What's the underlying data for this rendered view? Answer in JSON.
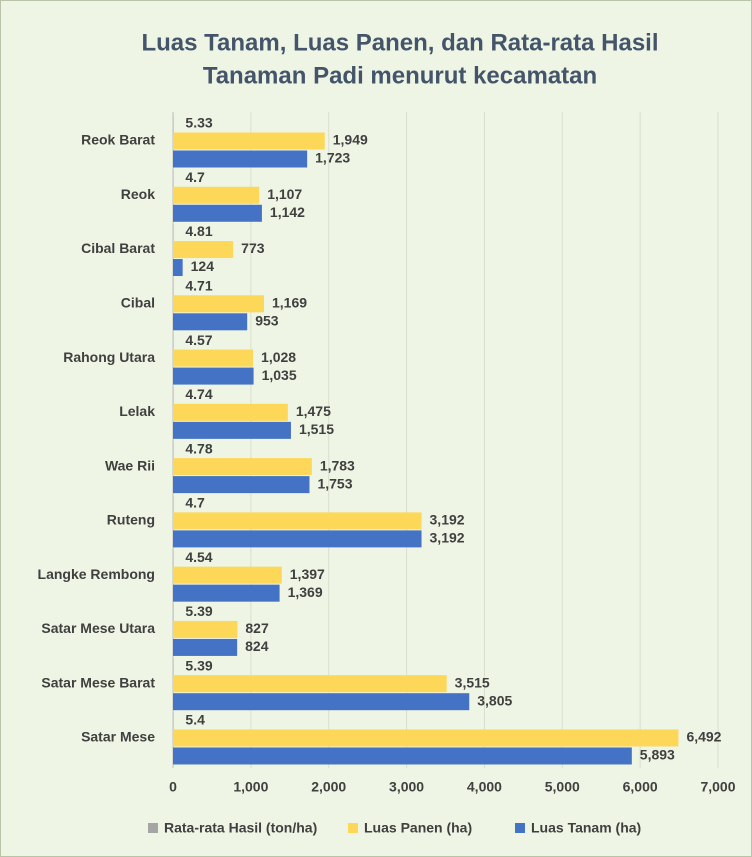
{
  "chart_data": {
    "type": "barh",
    "title": [
      "Luas Tanam, Luas Panen, dan Rata-rata Hasil",
      "Tanaman Padi menurut kecamatan"
    ],
    "categories": [
      "Reok Barat",
      "Reok",
      "Cibal Barat",
      "Cibal",
      "Rahong Utara",
      "Lelak",
      "Wae Rii",
      "Ruteng",
      "Langke Rembong",
      "Satar Mese Utara",
      "Satar Mese Barat",
      "Satar Mese"
    ],
    "series": [
      {
        "name": "Rata-rata Hasil (ton/ha)",
        "color": "#a5a5a5",
        "values": [
          5.33,
          4.7,
          4.81,
          4.71,
          4.57,
          4.74,
          4.78,
          4.7,
          4.54,
          5.39,
          5.39,
          5.4
        ]
      },
      {
        "name": "Luas Panen (ha)",
        "color": "#fdd757",
        "values": [
          1949,
          1107,
          773,
          1169,
          1028,
          1475,
          1783,
          3192,
          1397,
          827,
          3515,
          6492
        ],
        "value_labels": [
          "1,949",
          "1,107",
          "773",
          "1,169",
          "1,028",
          "1,475",
          "1,783",
          "3,192",
          "1,397",
          "827",
          "3,515",
          "6,492"
        ]
      },
      {
        "name": "Luas Tanam (ha)",
        "color": "#4472c4",
        "values": [
          1723,
          1142,
          124,
          953,
          1035,
          1515,
          1753,
          3192,
          1369,
          824,
          3805,
          5893
        ],
        "value_labels": [
          "1,723",
          "1,142",
          "124",
          "953",
          "1,035",
          "1,515",
          "1,753",
          "3,192",
          "1,369",
          "824",
          "3,805",
          "5,893"
        ]
      }
    ],
    "xlim": [
      0,
      7000
    ],
    "xticks": [
      0,
      {
        "value": 1000,
        "label": "1,000"
      },
      {
        "value": 2000,
        "label": "2,000"
      },
      {
        "value": 3000,
        "label": "3,000"
      },
      {
        "value": 4000,
        "label": "4,000"
      },
      {
        "value": 5000,
        "label": "5,000"
      },
      {
        "value": 6000,
        "label": "6,000"
      },
      {
        "value": 7000,
        "label": "7,000"
      }
    ],
    "grid": true,
    "legend": "bottom"
  }
}
